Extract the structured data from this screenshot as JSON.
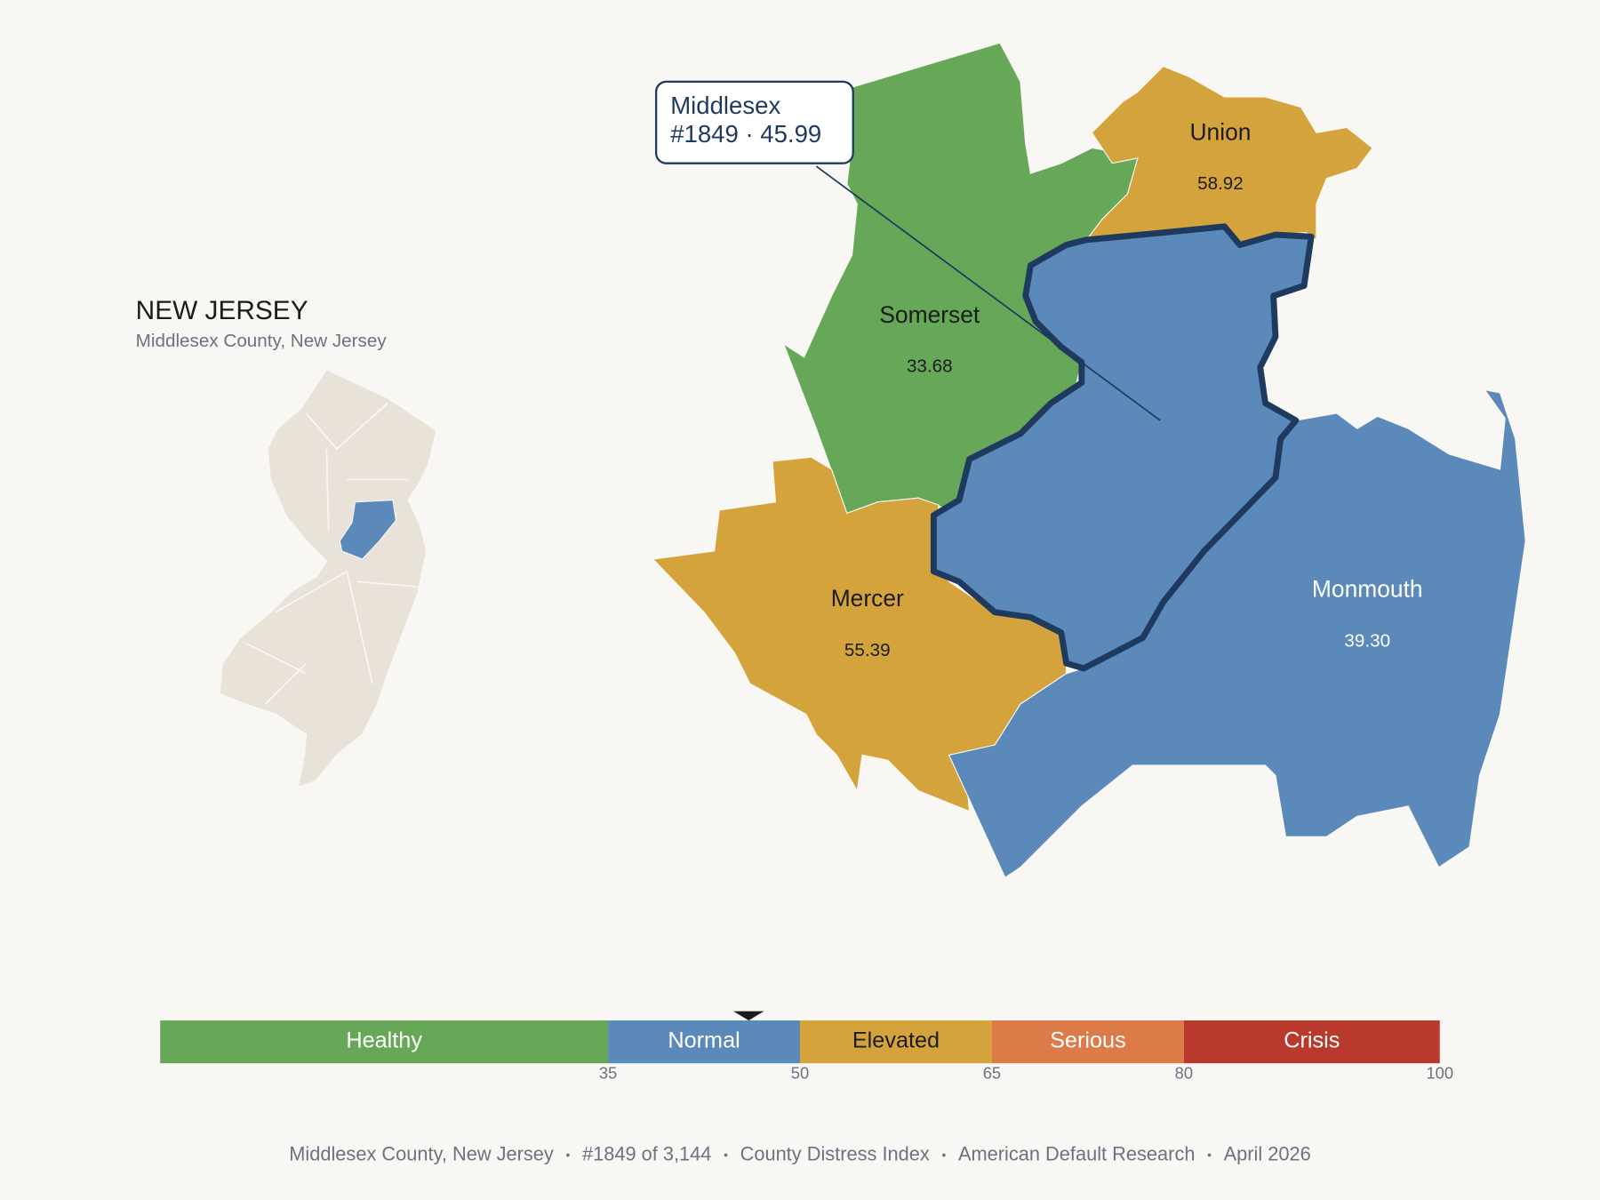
{
  "header": {
    "title": "NEW JERSEY",
    "subtitle": "Middlesex County, New Jersey"
  },
  "callout": {
    "name": "Middlesex",
    "line2": "#1849 · 45.99",
    "value": 45.99
  },
  "counties": [
    {
      "name": "Somerset",
      "value": 33.68
    },
    {
      "name": "Union",
      "value": 58.92
    },
    {
      "name": "Mercer",
      "value": 55.39
    },
    {
      "name": "Monmouth",
      "value": 39.3,
      "value_label": "39.30"
    }
  ],
  "scale": {
    "xlim": [
      0,
      100
    ],
    "xticks": [
      35,
      50,
      65,
      80,
      100
    ],
    "bands": [
      {
        "name": "Healthy",
        "color": "#66a758",
        "text_color": "#ffffff",
        "map_text": "#1c1c1c"
      },
      {
        "name": "Normal",
        "color": "#5b89b9",
        "text_color": "#ffffff",
        "map_text": "#ffffff"
      },
      {
        "name": "Elevated",
        "color": "#d4a33b",
        "text_color": "#1c1c1c",
        "map_text": "#1c1c1c"
      },
      {
        "name": "Serious",
        "color": "#dc7a48",
        "text_color": "#ffffff",
        "map_text": "#1c1c1c"
      },
      {
        "name": "Crisis",
        "color": "#b93a2c",
        "text_color": "#ffffff",
        "map_text": "#ffffff"
      }
    ]
  },
  "footer": [
    "Middlesex County, New Jersey",
    "#1849 of 3,144",
    "County Distress Index",
    "American Default Research",
    "April 2026"
  ]
}
